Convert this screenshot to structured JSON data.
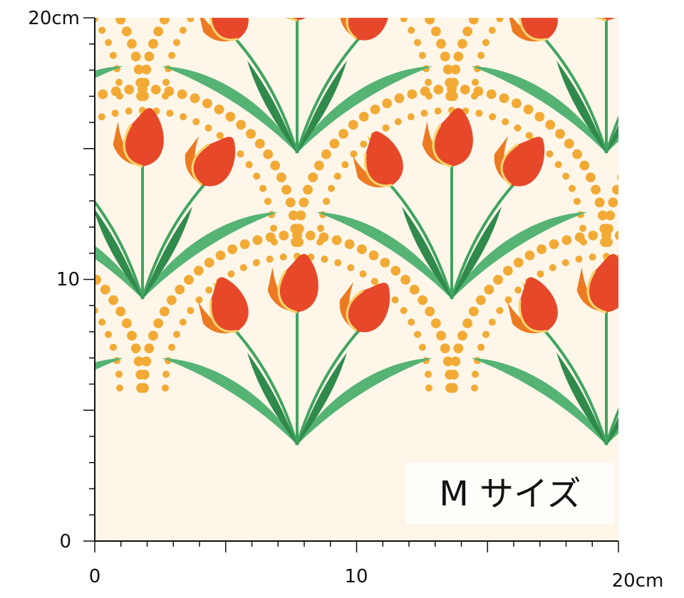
{
  "ruler": {
    "y_labels": [
      "20cm",
      "10",
      "0"
    ],
    "x_labels": [
      "0",
      "10",
      "20cm"
    ]
  },
  "size_label": "M サイズ"
}
